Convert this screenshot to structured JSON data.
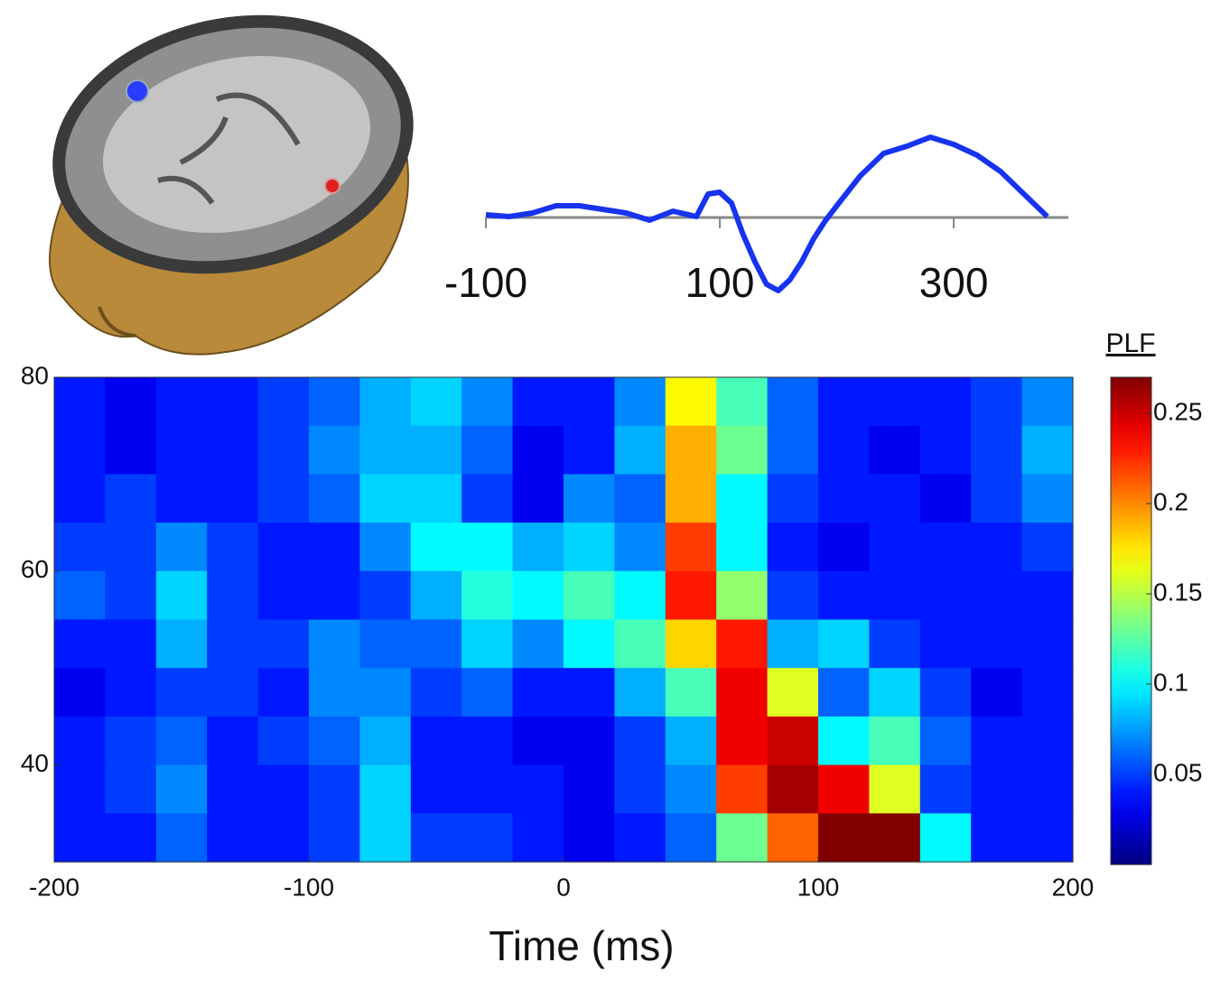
{
  "chart_data": [
    {
      "type": "line",
      "x": [
        -100,
        -80,
        -60,
        -40,
        -20,
        0,
        20,
        40,
        60,
        80,
        90,
        100,
        110,
        120,
        130,
        140,
        150,
        160,
        170,
        180,
        190,
        200,
        220,
        240,
        260,
        280,
        300,
        320,
        340,
        360,
        380
      ],
      "values": [
        0.3,
        0.1,
        0.5,
        1.3,
        1.3,
        0.9,
        0.5,
        -0.3,
        0.7,
        0.1,
        2.6,
        2.8,
        1.6,
        -1.9,
        -4.9,
        -7.4,
        -8.1,
        -6.9,
        -4.9,
        -2.4,
        -0.4,
        1.3,
        4.6,
        7.1,
        7.9,
        8.9,
        8.1,
        6.9,
        5.1,
        2.6,
        0.1
      ],
      "color": "#1733f0",
      "xlim": [
        -100,
        398
      ],
      "xticks": [
        -100,
        100,
        300
      ],
      "ylim": [
        -9,
        10
      ]
    },
    {
      "type": "heatmap",
      "x": [
        -190,
        -170,
        -150,
        -130,
        -110,
        -90,
        -70,
        -50,
        -30,
        -10,
        10,
        30,
        50,
        70,
        90,
        110,
        130,
        150,
        170,
        190
      ],
      "y": [
        77.5,
        72.5,
        67.5,
        62.5,
        57.5,
        52.5,
        47.5,
        42.5,
        37.5,
        32.5
      ],
      "values": [
        [
          0.04,
          0.03,
          0.04,
          0.04,
          0.05,
          0.06,
          0.08,
          0.09,
          0.07,
          0.04,
          0.04,
          0.07,
          0.17,
          0.12,
          0.06,
          0.04,
          0.04,
          0.04,
          0.05,
          0.07
        ],
        [
          0.04,
          0.03,
          0.04,
          0.04,
          0.05,
          0.07,
          0.08,
          0.08,
          0.06,
          0.03,
          0.04,
          0.08,
          0.19,
          0.13,
          0.06,
          0.04,
          0.03,
          0.04,
          0.05,
          0.08
        ],
        [
          0.04,
          0.05,
          0.04,
          0.04,
          0.05,
          0.06,
          0.09,
          0.09,
          0.05,
          0.03,
          0.07,
          0.06,
          0.19,
          0.1,
          0.05,
          0.04,
          0.04,
          0.03,
          0.05,
          0.07
        ],
        [
          0.05,
          0.05,
          0.07,
          0.05,
          0.04,
          0.04,
          0.07,
          0.1,
          0.1,
          0.08,
          0.09,
          0.07,
          0.22,
          0.1,
          0.04,
          0.03,
          0.04,
          0.04,
          0.04,
          0.05
        ],
        [
          0.06,
          0.05,
          0.09,
          0.05,
          0.04,
          0.04,
          0.05,
          0.08,
          0.11,
          0.1,
          0.12,
          0.1,
          0.23,
          0.14,
          0.05,
          0.04,
          0.04,
          0.04,
          0.04,
          0.04
        ],
        [
          0.04,
          0.04,
          0.08,
          0.05,
          0.05,
          0.07,
          0.06,
          0.06,
          0.09,
          0.07,
          0.1,
          0.12,
          0.18,
          0.23,
          0.08,
          0.09,
          0.05,
          0.04,
          0.04,
          0.04
        ],
        [
          0.03,
          0.04,
          0.05,
          0.05,
          0.04,
          0.07,
          0.07,
          0.05,
          0.06,
          0.04,
          0.04,
          0.08,
          0.12,
          0.24,
          0.16,
          0.06,
          0.09,
          0.05,
          0.03,
          0.04
        ],
        [
          0.04,
          0.05,
          0.06,
          0.04,
          0.05,
          0.06,
          0.08,
          0.04,
          0.04,
          0.03,
          0.03,
          0.05,
          0.08,
          0.24,
          0.25,
          0.1,
          0.12,
          0.06,
          0.04,
          0.04
        ],
        [
          0.04,
          0.05,
          0.07,
          0.04,
          0.04,
          0.05,
          0.09,
          0.04,
          0.04,
          0.04,
          0.03,
          0.05,
          0.07,
          0.22,
          0.26,
          0.24,
          0.16,
          0.05,
          0.04,
          0.04
        ],
        [
          0.04,
          0.04,
          0.06,
          0.04,
          0.04,
          0.05,
          0.09,
          0.05,
          0.05,
          0.04,
          0.03,
          0.04,
          0.06,
          0.13,
          0.21,
          0.27,
          0.27,
          0.1,
          0.04,
          0.04
        ]
      ],
      "xlim": [
        -200,
        200
      ],
      "xticks": [
        -200,
        -100,
        0,
        100,
        200
      ],
      "ylim": [
        30,
        80
      ],
      "yticks": [
        40,
        60,
        80
      ],
      "x_label": "Time (ms)",
      "colormap": "jet",
      "clim": [
        0,
        0.27
      ],
      "cticks": [
        0.05,
        0.1,
        0.15,
        0.2,
        0.25
      ],
      "colorbar_label": "PLF"
    }
  ]
}
